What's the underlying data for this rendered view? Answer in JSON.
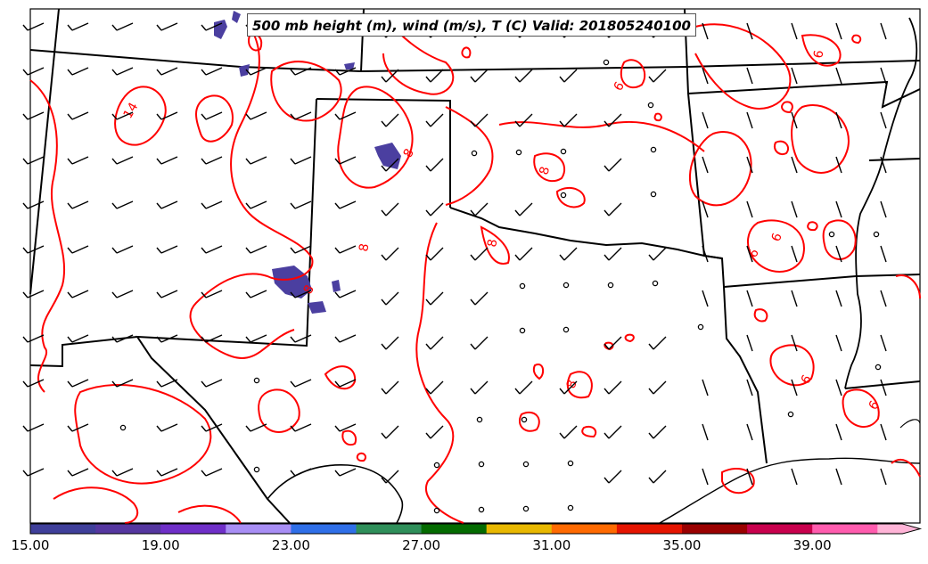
{
  "title": "500 mb height (m), wind (m/s), T (C) Valid: 201805240100",
  "colorbar": {
    "tick_labels": [
      "15.00",
      "19.00",
      "23.00",
      "27.00",
      "31.00",
      "35.00",
      "39.00"
    ],
    "colors": [
      "#3f3f9a",
      "#5537a0",
      "#6f2fc8",
      "#a88ef5",
      "#2f6fe8",
      "#2f8f5a",
      "#046b00",
      "#e8b800",
      "#ff6a00",
      "#e51400",
      "#9a0000",
      "#c8004d",
      "#ff5cae",
      "#ffb4d7"
    ]
  },
  "contour_labels": [
    "14",
    "8",
    "8",
    "8",
    "8",
    "8",
    "8",
    "6",
    "6",
    "6",
    "6",
    "6",
    "6"
  ],
  "colors": {
    "temperature_contour": "#ff0000",
    "boundary": "#000000",
    "wind_barb": "#000000",
    "shaded_region": "#4b3fa0"
  }
}
